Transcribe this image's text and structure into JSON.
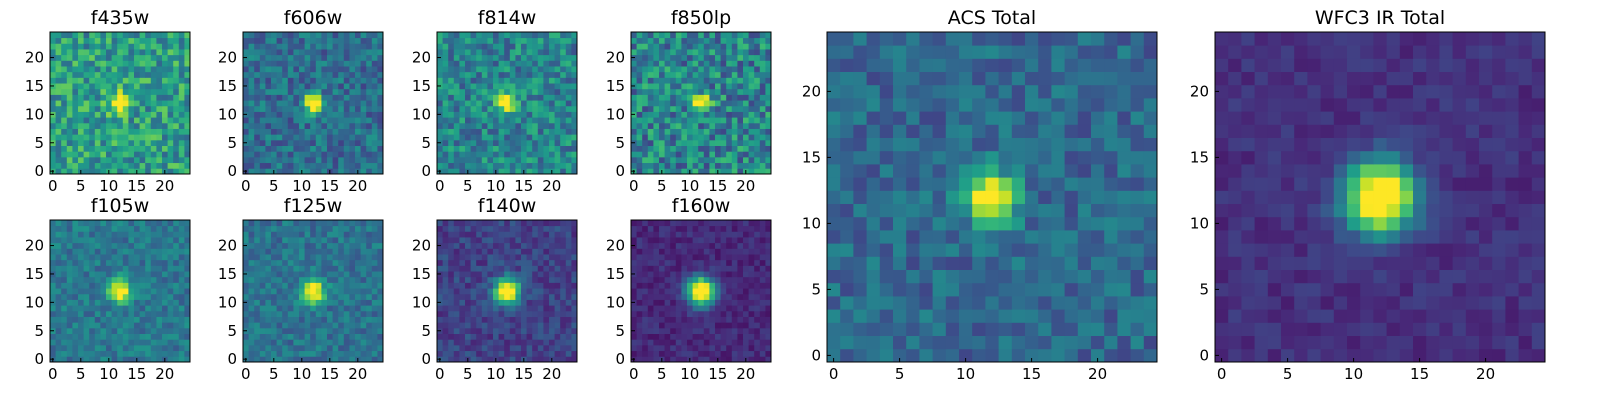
{
  "chart_data": [
    {
      "type": "heatmap",
      "title": "f435w",
      "xticks": [
        "0",
        "5",
        "10",
        "15",
        "20"
      ],
      "yticks": [
        "0",
        "5",
        "10",
        "15",
        "20"
      ],
      "xlim": [
        0,
        25
      ],
      "ylim": [
        0,
        25
      ],
      "grid": false,
      "colormap": "viridis",
      "background_level": 0.55,
      "background_noise": 0.22,
      "peak": [
        12,
        12
      ],
      "peak_width": 1.3,
      "peak_amplitude": 0.55
    },
    {
      "type": "heatmap",
      "title": "f606w",
      "xticks": [
        "0",
        "5",
        "10",
        "15",
        "20"
      ],
      "yticks": [
        "0",
        "5",
        "10",
        "15",
        "20"
      ],
      "xlim": [
        0,
        25
      ],
      "ylim": [
        0,
        25
      ],
      "grid": false,
      "colormap": "viridis",
      "background_level": 0.36,
      "background_noise": 0.16,
      "peak": [
        12,
        12
      ],
      "peak_width": 1.1,
      "peak_amplitude": 0.7
    },
    {
      "type": "heatmap",
      "title": "f814w",
      "xticks": [
        "0",
        "5",
        "10",
        "15",
        "20"
      ],
      "yticks": [
        "0",
        "5",
        "10",
        "15",
        "20"
      ],
      "xlim": [
        0,
        25
      ],
      "ylim": [
        0,
        25
      ],
      "grid": false,
      "colormap": "viridis",
      "background_level": 0.45,
      "background_noise": 0.2,
      "peak": [
        12,
        12
      ],
      "peak_width": 1.1,
      "peak_amplitude": 0.6
    },
    {
      "type": "heatmap",
      "title": "f850lp",
      "xticks": [
        "0",
        "5",
        "10",
        "15",
        "20"
      ],
      "yticks": [
        "0",
        "5",
        "10",
        "15",
        "20"
      ],
      "xlim": [
        0,
        25
      ],
      "ylim": [
        0,
        25
      ],
      "grid": false,
      "colormap": "viridis",
      "background_level": 0.45,
      "background_noise": 0.24,
      "peak": [
        12,
        12
      ],
      "peak_width": 1.1,
      "peak_amplitude": 0.55
    },
    {
      "type": "heatmap",
      "title": "f105w",
      "xticks": [
        "0",
        "5",
        "10",
        "15",
        "20"
      ],
      "yticks": [
        "0",
        "5",
        "10",
        "15",
        "20"
      ],
      "xlim": [
        0,
        25
      ],
      "ylim": [
        0,
        25
      ],
      "grid": false,
      "colormap": "viridis",
      "background_level": 0.4,
      "background_noise": 0.12,
      "peak": [
        12,
        12
      ],
      "peak_width": 1.4,
      "peak_amplitude": 0.6
    },
    {
      "type": "heatmap",
      "title": "f125w",
      "xticks": [
        "0",
        "5",
        "10",
        "15",
        "20"
      ],
      "yticks": [
        "0",
        "5",
        "10",
        "15",
        "20"
      ],
      "xlim": [
        0,
        25
      ],
      "ylim": [
        0,
        25
      ],
      "grid": false,
      "colormap": "viridis",
      "background_level": 0.38,
      "background_noise": 0.12,
      "peak": [
        12,
        12
      ],
      "peak_width": 1.4,
      "peak_amplitude": 0.62
    },
    {
      "type": "heatmap",
      "title": "f140w",
      "xticks": [
        "0",
        "5",
        "10",
        "15",
        "20"
      ],
      "yticks": [
        "0",
        "5",
        "10",
        "15",
        "20"
      ],
      "xlim": [
        0,
        25
      ],
      "ylim": [
        0,
        25
      ],
      "grid": false,
      "colormap": "viridis",
      "background_level": 0.2,
      "background_noise": 0.1,
      "peak": [
        12,
        12
      ],
      "peak_width": 1.6,
      "peak_amplitude": 0.8
    },
    {
      "type": "heatmap",
      "title": "f160w",
      "xticks": [
        "0",
        "5",
        "10",
        "15",
        "20"
      ],
      "yticks": [
        "0",
        "5",
        "10",
        "15",
        "20"
      ],
      "xlim": [
        0,
        25
      ],
      "ylim": [
        0,
        25
      ],
      "grid": false,
      "colormap": "viridis",
      "background_level": 0.12,
      "background_noise": 0.07,
      "peak": [
        12,
        12
      ],
      "peak_width": 1.7,
      "peak_amplitude": 0.9
    },
    {
      "type": "heatmap",
      "title": "ACS Total",
      "xticks": [
        "0",
        "5",
        "10",
        "15",
        "20"
      ],
      "yticks": [
        "0",
        "5",
        "10",
        "15",
        "20"
      ],
      "xlim": [
        0,
        25
      ],
      "ylim": [
        0,
        25
      ],
      "grid": false,
      "colormap": "viridis",
      "background_level": 0.34,
      "background_noise": 0.13,
      "peak": [
        12,
        12
      ],
      "peak_width": 1.3,
      "peak_amplitude": 0.7
    },
    {
      "type": "heatmap",
      "title": "WFC3 IR Total",
      "xticks": [
        "0",
        "5",
        "10",
        "15",
        "20"
      ],
      "yticks": [
        "0",
        "5",
        "10",
        "15",
        "20"
      ],
      "xlim": [
        0,
        25
      ],
      "ylim": [
        0,
        25
      ],
      "grid": false,
      "colormap": "viridis",
      "background_level": 0.14,
      "background_noise": 0.06,
      "peak": [
        12,
        12
      ],
      "peak_width": 1.9,
      "peak_amplitude": 0.88
    }
  ],
  "colors": {
    "viridis": [
      "#440154",
      "#482878",
      "#3e4989",
      "#31688e",
      "#26828e",
      "#1f9e89",
      "#35b779",
      "#6ece58",
      "#b5de2b",
      "#fde725"
    ],
    "axis": "#000000",
    "background": "#ffffff"
  }
}
